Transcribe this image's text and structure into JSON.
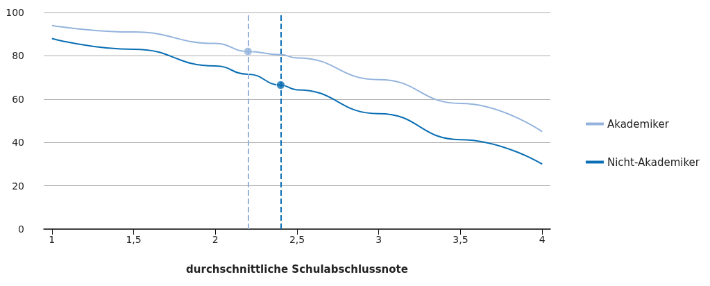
{
  "chart_data": {
    "type": "line",
    "xlabel": "durchschnittliche Schulabschlussnote",
    "x": [
      1,
      1.5,
      2,
      2.2,
      2.4,
      2.5,
      3,
      3.5,
      4
    ],
    "series": [
      {
        "name": "Akademiker",
        "color": "#94b4dd",
        "values": [
          94,
          91,
          85.7,
          82,
          80.5,
          79,
          69,
          58,
          45
        ]
      },
      {
        "name": "Nicht-Akademiker",
        "color": "#0a6eb4",
        "values": [
          88,
          83,
          75.3,
          71.5,
          66.5,
          64.3,
          53.3,
          41.3,
          30
        ]
      },
      {
        "type": "scatter",
        "marker": "circle",
        "color": "#94b4dd",
        "x": [
          2.2
        ],
        "values": [
          82
        ]
      },
      {
        "type": "scatter",
        "marker": "circle",
        "color": "#0a6eb4",
        "x": [
          2.4
        ],
        "values": [
          66.5
        ]
      }
    ],
    "xlim": [
      0.95,
      4.05
    ],
    "xticks": [
      1,
      {
        "value": 1.5,
        "label": "1,5"
      },
      2,
      {
        "value": 2.5,
        "label": "2,5"
      },
      3,
      {
        "value": 3.5,
        "label": "3,5"
      },
      4
    ],
    "ylim": [
      0,
      100
    ],
    "yticks": [
      0,
      20,
      40,
      60,
      80,
      100
    ],
    "ref_lines": [
      {
        "axis": "x",
        "value": 2.2,
        "color": "#94b4dd",
        "line_style": "dashed"
      },
      {
        "axis": "x",
        "value": 2.4,
        "color": "#0a6eb4",
        "line_style": "dashed"
      }
    ],
    "grid": "y",
    "legend": "right",
    "marker": "none",
    "line_style": "solid"
  }
}
